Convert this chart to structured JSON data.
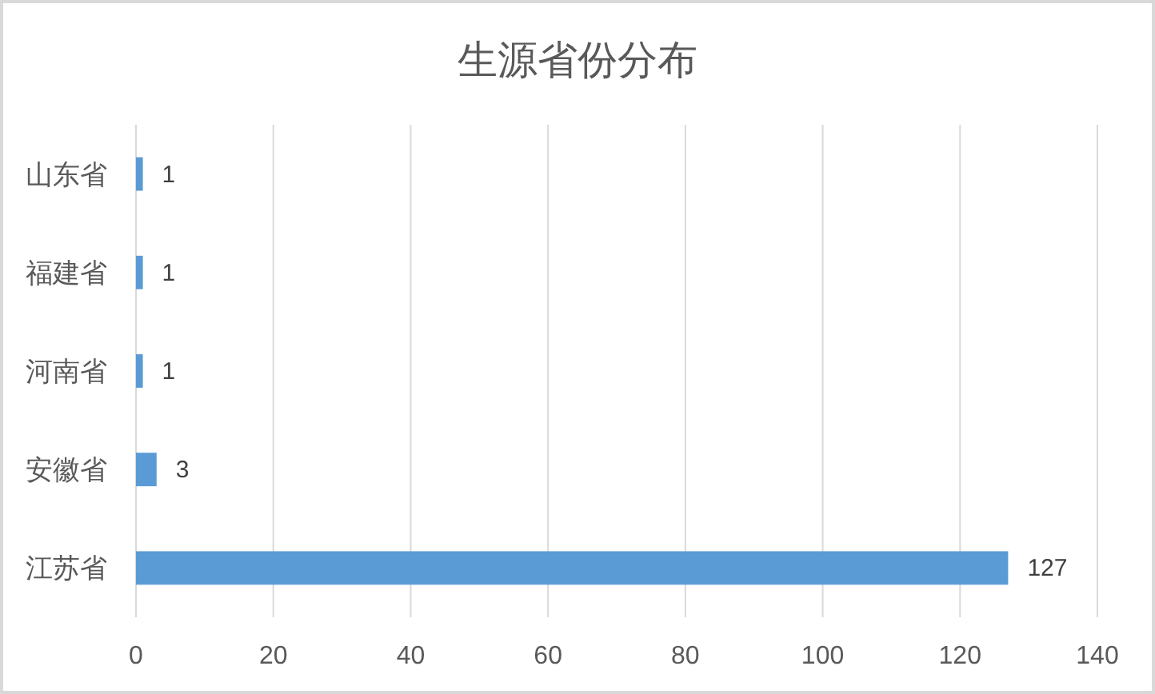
{
  "chart_data": {
    "type": "bar",
    "orientation": "horizontal",
    "title": "生源省份分布",
    "categories": [
      "山东省",
      "福建省",
      "河南省",
      "安徽省",
      "江苏省"
    ],
    "values": [
      1,
      1,
      1,
      3,
      127
    ],
    "color": "#5b9bd5",
    "xlim": [
      0,
      140
    ],
    "xticks": [
      0,
      20,
      40,
      60,
      80,
      100,
      120,
      140
    ],
    "grid": "x",
    "data_labels": true
  }
}
